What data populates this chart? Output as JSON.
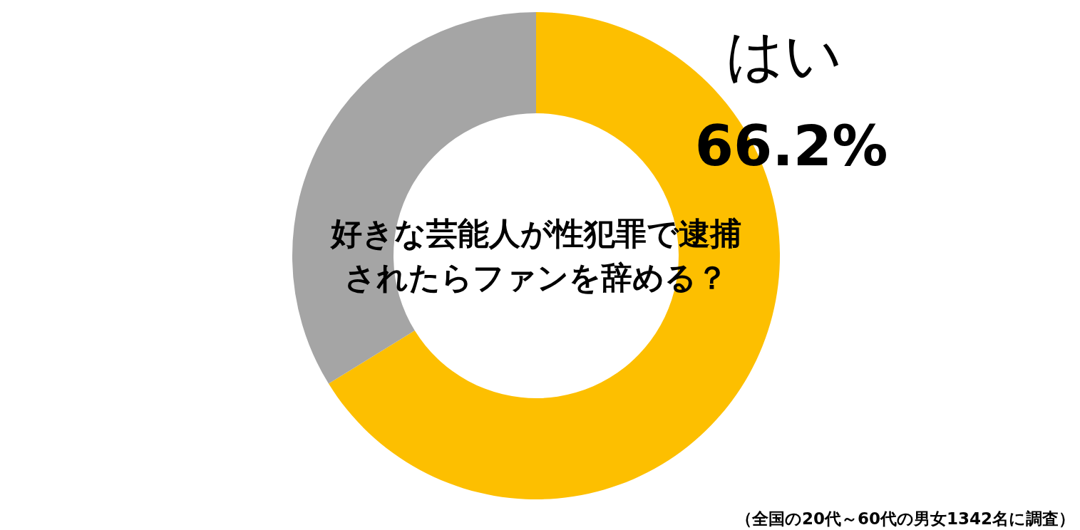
{
  "chart_data": {
    "type": "donut",
    "title": "好きな芸能人が性犯罪で逮捕されたらファンを辞める？",
    "categories": [
      "はい",
      null
    ],
    "values": [
      66.2,
      33.8
    ],
    "value_labels": [
      "66.2%",
      null
    ],
    "colors": [
      "#fdbf00",
      "#a5a5a5"
    ],
    "annotations": [
      "（全国の20代～60代の男女1342名に調査）"
    ]
  }
}
